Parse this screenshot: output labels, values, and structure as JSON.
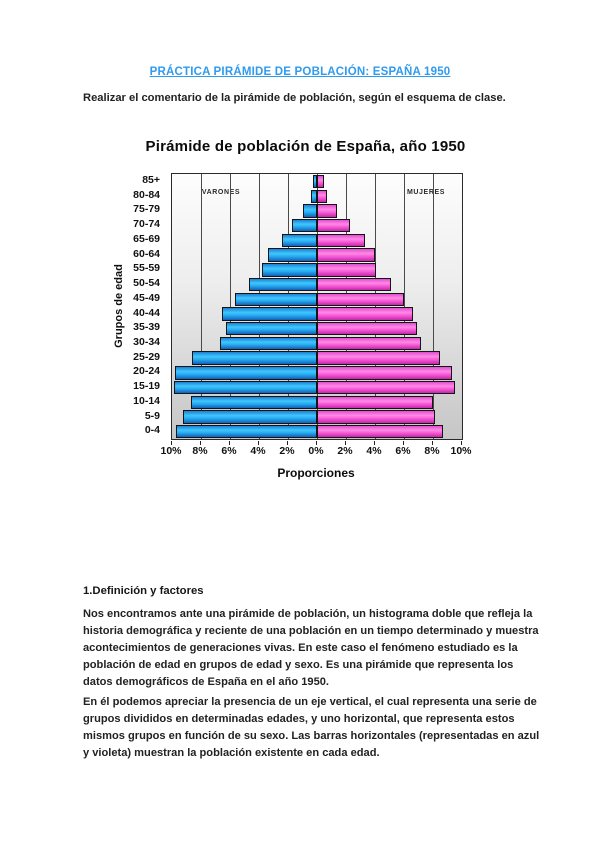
{
  "page": {
    "title": "PRÁCTICA PIRÁMIDE DE POBLACIÓN: ESPAÑA 1950",
    "intro": "Realizar el comentario de la pirámide de población, según el esquema de clase."
  },
  "colors": {
    "title_blue": "#2e9bef",
    "men_bar_blue": "#29a6f4",
    "women_bar_pink": "#f85cd8",
    "plot_background_gray": "#d6d6d6",
    "gridline_gray": "#4a4a4a"
  },
  "chart_data": {
    "type": "bar",
    "subtype": "population-pyramid",
    "title": "Pirámide de población de España, año 1950",
    "ylabel": "Grupos de edad",
    "xlabel": "Proporciones",
    "left_label": "VARONES",
    "right_label": "MUJERES",
    "grid": true,
    "x_axis_percent_each_side": [
      0,
      10
    ],
    "x_ticks": [
      "10%",
      "8%",
      "6%",
      "4%",
      "2%",
      "0%",
      "2%",
      "4%",
      "6%",
      "8%",
      "10%"
    ],
    "categories": [
      "85+",
      "80-84",
      "75-79",
      "70-74",
      "65-69",
      "60-64",
      "55-59",
      "50-54",
      "45-49",
      "40-44",
      "35-39",
      "30-34",
      "25-29",
      "20-24",
      "15-19",
      "10-14",
      "5-9",
      "0-4"
    ],
    "series": [
      {
        "name": "Varones",
        "side": "left",
        "values": [
          0.3,
          0.45,
          1.0,
          1.7,
          2.4,
          3.4,
          3.8,
          4.7,
          5.65,
          6.55,
          6.25,
          6.7,
          8.6,
          9.8,
          9.85,
          8.7,
          9.25,
          9.75
        ]
      },
      {
        "name": "Mujeres",
        "side": "right",
        "values": [
          0.5,
          0.7,
          1.4,
          2.3,
          3.3,
          4.0,
          4.1,
          5.1,
          6.0,
          6.6,
          6.9,
          7.2,
          8.45,
          9.3,
          9.5,
          8.0,
          8.15,
          8.7
        ]
      }
    ]
  },
  "sections": [
    {
      "heading": "1.Definición y factores",
      "paragraphs": [
        "Nos encontramos ante una pirámide de población, un histograma doble que refleja la historia demográfica y reciente de una población en un tiempo determinado y muestra acontecimientos de generaciones vivas. En este caso el fenómeno estudiado es la población de edad en grupos de edad y sexo. Es una pirámide que representa los datos demográficos de España en el año 1950.",
        "En él podemos apreciar la presencia de un eje vertical, el cual representa una serie de grupos divididos en determinadas edades, y uno horizontal, que representa estos mismos grupos en función de su sexo. Las barras horizontales (representadas en azul y violeta) muestran la población existente en cada edad."
      ]
    }
  ]
}
